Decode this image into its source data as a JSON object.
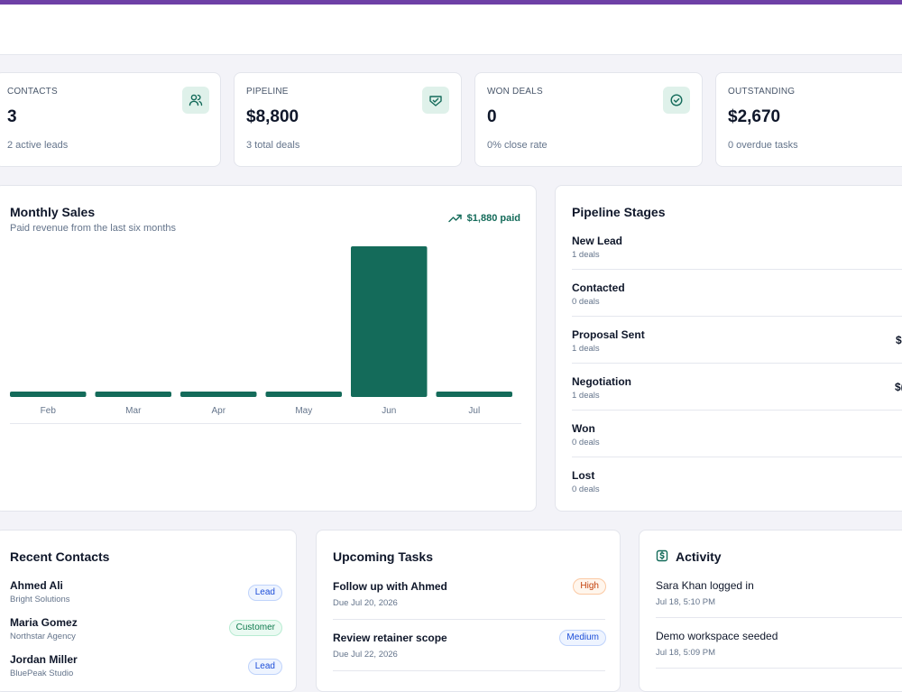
{
  "stats": [
    {
      "title": "CONTACTS",
      "value": "3",
      "sub": "2 active leads",
      "icon": "users-icon"
    },
    {
      "title": "PIPELINE",
      "value": "$8,800",
      "sub": "3 total deals",
      "icon": "handshake-icon"
    },
    {
      "title": "WON DEALS",
      "value": "0",
      "sub": "0% close rate",
      "icon": "check-circle-icon"
    },
    {
      "title": "OUTSTANDING",
      "value": "$2,670",
      "sub": "0 overdue tasks"
    }
  ],
  "monthly_sales": {
    "title": "Monthly Sales",
    "subtitle": "Paid revenue from the last six months",
    "paid_label": "$1,880 paid"
  },
  "chart_data": {
    "type": "bar",
    "title": "Monthly Sales",
    "categories": [
      "Feb",
      "Mar",
      "Apr",
      "May",
      "Jun",
      "Jul"
    ],
    "values": [
      0,
      0,
      0,
      0,
      1880,
      0
    ],
    "ylim": [
      0,
      1880
    ],
    "grid": false,
    "bar_color": "#146b5a"
  },
  "pipeline_stages": {
    "title": "Pipeline Stages",
    "stages": [
      {
        "name": "New Lead",
        "count": "1 deals",
        "amount": ""
      },
      {
        "name": "Contacted",
        "count": "0 deals",
        "amount": ""
      },
      {
        "name": "Proposal Sent",
        "count": "1 deals",
        "amount": "$"
      },
      {
        "name": "Negotiation",
        "count": "1 deals",
        "amount": "$("
      },
      {
        "name": "Won",
        "count": "0 deals",
        "amount": ""
      },
      {
        "name": "Lost",
        "count": "0 deals",
        "amount": ""
      }
    ]
  },
  "recent_contacts": {
    "title": "Recent Contacts",
    "items": [
      {
        "name": "Ahmed Ali",
        "company": "Bright Solutions",
        "badge": "Lead"
      },
      {
        "name": "Maria Gomez",
        "company": "Northstar Agency",
        "badge": "Customer"
      },
      {
        "name": "Jordan Miller",
        "company": "BluePeak Studio",
        "badge": "Lead"
      }
    ]
  },
  "upcoming_tasks": {
    "title": "Upcoming Tasks",
    "items": [
      {
        "title": "Follow up with Ahmed",
        "due": "Due Jul 20, 2026",
        "priority": "High"
      },
      {
        "title": "Review retainer scope",
        "due": "Due Jul 22, 2026",
        "priority": "Medium"
      }
    ]
  },
  "activity": {
    "title": "Activity",
    "items": [
      {
        "text": "Sara Khan logged in",
        "time": "Jul 18, 5:10 PM"
      },
      {
        "text": "Demo workspace seeded",
        "time": "Jul 18, 5:09 PM"
      }
    ]
  },
  "colors": {
    "accent": "#146b5a",
    "brand_bar": "#6e40a6",
    "icon_bg": "#dff1ea"
  }
}
